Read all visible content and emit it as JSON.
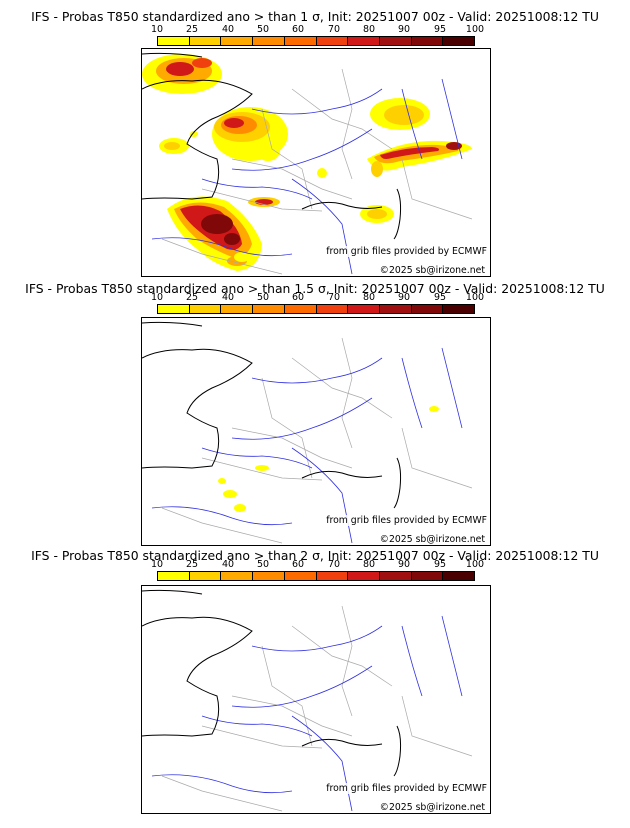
{
  "legend": {
    "ticks": [
      "10",
      "25",
      "40",
      "50",
      "60",
      "70",
      "80",
      "90",
      "95",
      "100"
    ],
    "colors": [
      "#ffff00",
      "#ffd000",
      "#ffaa00",
      "#ff8c00",
      "#ff6a00",
      "#f04010",
      "#d01818",
      "#a01010",
      "#800808",
      "#4a0000"
    ]
  },
  "panels": [
    {
      "title": "IFS - Probas T850  standardized ano > than 1 σ, Init: 20251007 00z - Valid: 20251008:12 TU",
      "source": "from grib files provided by ECMWF",
      "copyright": "©2025 sb@irizone.net"
    },
    {
      "title": "IFS - Probas T850  standardized ano > than 1.5 σ, Init: 20251007 00z - Valid: 20251008:12 TU",
      "source": "from grib files provided by ECMWF",
      "copyright": "©2025 sb@irizone.net"
    },
    {
      "title": "IFS - Probas T850  standardized ano > than 2 σ, Init: 20251007 00z - Valid: 20251008:12 TU",
      "source": "from grib files provided by ECMWF",
      "copyright": "©2025 sb@irizone.net"
    }
  ]
}
